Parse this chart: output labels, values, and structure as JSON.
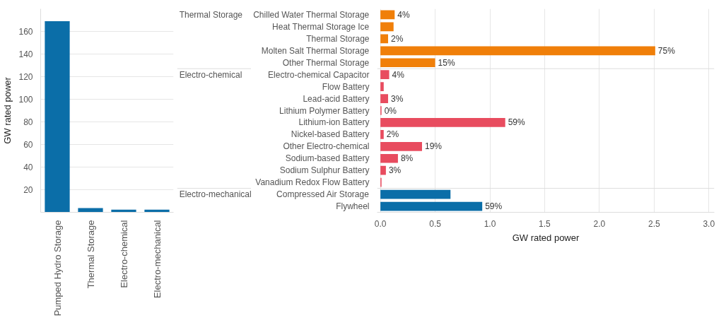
{
  "chart_data": [
    {
      "type": "bar",
      "categories": [
        "Pumped Hydro Storage",
        "Thermal Storage",
        "Electro-chemical",
        "Electro-mechanical"
      ],
      "values": [
        169,
        3.8,
        2.4,
        2.4
      ],
      "color": "#0b6ea8",
      "ylabel": "GW rated power",
      "ylim": [
        0,
        180
      ],
      "yticks": [
        20,
        40,
        60,
        80,
        100,
        120,
        140,
        160
      ],
      "grid": "y"
    },
    {
      "type": "bar",
      "orientation": "horizontal",
      "categories": [
        "Chilled Water Thermal Storage",
        "Heat Thermal Storage Ice",
        "Thermal Storage",
        "Molten Salt Thermal Storage",
        "Other Thermal Storage",
        "Electro-chemical Capacitor",
        "Flow Battery",
        "Lead-acid Battery",
        "Lithium Polymer Battery",
        "Lithium-ion Battery",
        "Nickel-based Battery",
        "Other Electro-chemical",
        "Sodium-based Battery",
        "Sodium Sulphur Battery",
        "Vanadium Redox Flow Battery",
        "Compressed Air Storage",
        "Flywheel"
      ],
      "values": [
        0.13,
        0.12,
        0.07,
        2.51,
        0.5,
        0.08,
        0.03,
        0.07,
        0.01,
        1.14,
        0.03,
        0.38,
        0.16,
        0.05,
        0.01,
        0.64,
        0.93
      ],
      "colors": [
        "#f07f09",
        "#f07f09",
        "#f07f09",
        "#f07f09",
        "#f07f09",
        "#e84c5f",
        "#e84c5f",
        "#e84c5f",
        "#e84c5f",
        "#e84c5f",
        "#e84c5f",
        "#e84c5f",
        "#e84c5f",
        "#e84c5f",
        "#e84c5f",
        "#0b6ea8",
        "#0b6ea8"
      ],
      "annotations": [
        "Thermal Storage",
        "Electro-chemical",
        "Electro-mechanical",
        {
          "text": "4%",
          "x": 0.13,
          "y": "Chilled Water Thermal Storage"
        },
        {
          "text": "2%",
          "x": 0.07,
          "y": "Thermal Storage"
        },
        {
          "text": "75%",
          "x": 2.51,
          "y": "Molten Salt Thermal Storage"
        },
        {
          "text": "15%",
          "x": 0.5,
          "y": "Other Thermal Storage"
        },
        {
          "text": "4%",
          "x": 0.08,
          "y": "Electro-chemical Capacitor"
        },
        {
          "text": "3%",
          "x": 0.07,
          "y": "Lead-acid Battery"
        },
        {
          "text": "0%",
          "x": 0.01,
          "y": "Lithium Polymer Battery"
        },
        {
          "text": "59%",
          "x": 1.14,
          "y": "Lithium-ion Battery"
        },
        {
          "text": "2%",
          "x": 0.03,
          "y": "Nickel-based Battery"
        },
        {
          "text": "19%",
          "x": 0.38,
          "y": "Other Electro-chemical"
        },
        {
          "text": "8%",
          "x": 0.16,
          "y": "Sodium-based Battery"
        },
        {
          "text": "3%",
          "x": 0.05,
          "y": "Sodium Sulphur Battery"
        },
        {
          "text": "59%",
          "x": 0.93,
          "y": "Flywheel"
        }
      ],
      "xlabel": "GW rated power",
      "xlim": [
        -0.03,
        3.05
      ],
      "xticks": [
        {
          "value": 0,
          "label": "0.0"
        },
        0.5,
        {
          "value": 1,
          "label": "1.0"
        },
        1.5,
        {
          "value": 2,
          "label": "2.0"
        },
        2.5,
        {
          "value": 3,
          "label": "3.0"
        }
      ],
      "grid": "x"
    }
  ]
}
